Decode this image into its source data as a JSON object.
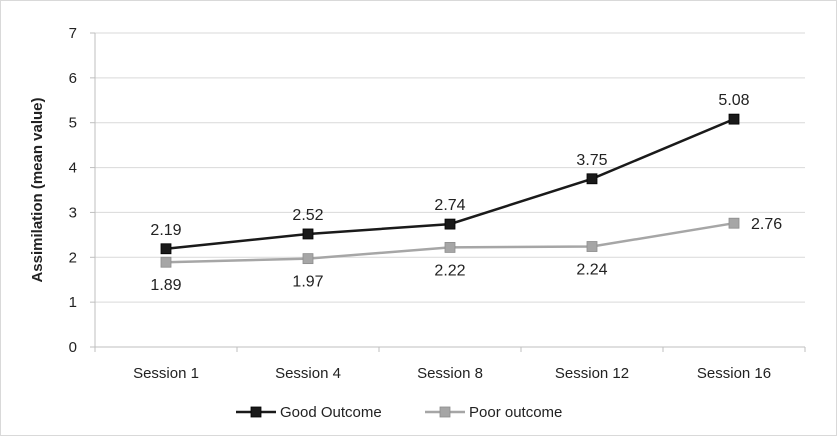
{
  "chart_data": {
    "type": "line",
    "title": "",
    "xlabel": "",
    "ylabel": "Assimilation (mean value)",
    "categories": [
      "Session 1",
      "Session 4",
      "Session 8",
      "Session 12",
      "Session 16"
    ],
    "ylim": [
      0,
      7
    ],
    "yticks": [
      0,
      1,
      2,
      3,
      4,
      5,
      6,
      7
    ],
    "grid": "horizontal",
    "legend_position": "bottom",
    "series": [
      {
        "name": "Good Outcome",
        "values": [
          2.19,
          2.52,
          2.74,
          3.75,
          5.08
        ],
        "labels": [
          "2.19",
          "2.52",
          "2.74",
          "3.75",
          "5.08"
        ],
        "color": "#1a1a1a",
        "marker": "square"
      },
      {
        "name": "Poor outcome",
        "values": [
          1.89,
          1.97,
          2.22,
          2.24,
          2.76
        ],
        "labels": [
          "1.89",
          "1.97",
          "2.22",
          "2.24",
          "2.76"
        ],
        "color": "#a6a6a6",
        "marker": "square"
      }
    ]
  }
}
